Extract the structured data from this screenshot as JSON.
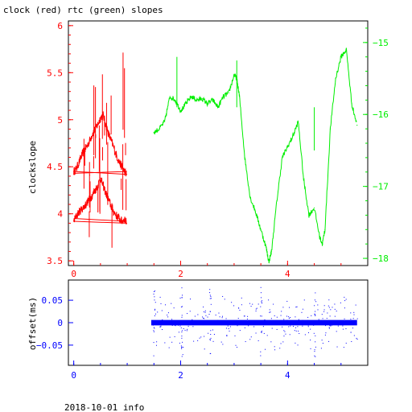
{
  "title": "clock (red) rtc (green) slopes",
  "footer": "2018-10-01 info",
  "colors": {
    "clock": "#ff0000",
    "rtc": "#00ee00",
    "offset": "#0000ff",
    "axis": "#000000"
  },
  "chart_data": [
    {
      "type": "line",
      "title": "clock (red) rtc (green) slopes",
      "ylabel": "clockslope",
      "xlim": [
        -0.1,
        5.5
      ],
      "ylim": [
        3.45,
        6.05
      ],
      "y2lim": [
        -18.1,
        -14.7
      ],
      "xticks": [
        0,
        2,
        4
      ],
      "yticks": [
        3.5,
        4,
        4.5,
        5,
        5.5,
        6
      ],
      "y2ticks": [
        -18,
        -17,
        -16,
        -15
      ],
      "xtick_labels": [
        "0",
        "2",
        "4"
      ],
      "ytick_labels": [
        "3.5",
        "4",
        "4.5",
        "5",
        "5.5",
        "6"
      ],
      "y2tick_labels": [
        "−18",
        "−17",
        "−16",
        "−15"
      ],
      "series": [
        {
          "axis": "left",
          "x": [
            0.0,
            0.05,
            0.1,
            0.15,
            0.2,
            0.25,
            0.3,
            0.35,
            0.4,
            0.45,
            0.5,
            0.55,
            0.6,
            0.65,
            0.7,
            0.75,
            0.8,
            0.85,
            0.9,
            0.95,
            0.99
          ],
          "y": [
            4.45,
            4.48,
            4.55,
            4.62,
            4.68,
            4.72,
            4.78,
            4.85,
            4.9,
            4.95,
            5.02,
            5.05,
            4.95,
            4.85,
            4.78,
            4.7,
            4.62,
            4.55,
            4.5,
            4.45,
            4.42
          ]
        },
        {
          "axis": "left",
          "x": [
            0.0,
            0.05,
            0.1,
            0.15,
            0.2,
            0.25,
            0.3,
            0.35,
            0.4,
            0.45,
            0.5,
            0.55,
            0.6,
            0.65,
            0.7,
            0.75,
            0.8,
            0.85,
            0.9,
            0.95,
            0.99
          ],
          "y": [
            3.92,
            3.98,
            4.02,
            4.05,
            4.08,
            4.12,
            4.16,
            4.2,
            4.25,
            4.3,
            4.38,
            4.3,
            4.22,
            4.15,
            4.08,
            4.02,
            3.98,
            3.95,
            3.92,
            3.95,
            3.9
          ]
        },
        {
          "axis": "right",
          "x": [
            1.5,
            1.6,
            1.7,
            1.8,
            1.9,
            2.0,
            2.1,
            2.2,
            2.3,
            2.4,
            2.5,
            2.6,
            2.7,
            2.8,
            2.9,
            3.0,
            3.05,
            3.1,
            3.2,
            3.3,
            3.4,
            3.5,
            3.6,
            3.65,
            3.7,
            3.8,
            3.9,
            4.0,
            4.1,
            4.2,
            4.3,
            4.4,
            4.5,
            4.6,
            4.65,
            4.7,
            4.8,
            4.9,
            5.0,
            5.1,
            5.2,
            5.3
          ],
          "y": [
            -16.25,
            -16.2,
            -16.1,
            -15.75,
            -15.8,
            -15.95,
            -15.85,
            -15.75,
            -15.8,
            -15.78,
            -15.85,
            -15.8,
            -15.9,
            -15.75,
            -15.7,
            -15.45,
            -15.5,
            -15.75,
            -16.6,
            -17.15,
            -17.35,
            -17.6,
            -17.85,
            -18.05,
            -17.9,
            -17.2,
            -16.6,
            -16.45,
            -16.3,
            -16.1,
            -16.9,
            -17.4,
            -17.3,
            -17.7,
            -17.8,
            -17.6,
            -16.2,
            -15.5,
            -15.2,
            -15.1,
            -15.85,
            -16.15
          ]
        }
      ]
    },
    {
      "type": "scatter",
      "ylabel": "offset(ms)",
      "xlim": [
        -0.1,
        5.5
      ],
      "ylim": [
        -0.095,
        0.095
      ],
      "xticks": [
        0,
        2,
        4
      ],
      "yticks": [
        -0.05,
        0,
        0.05
      ],
      "xtick_labels": [
        "0",
        "2",
        "4"
      ],
      "ytick_labels": [
        "−0.05",
        "0",
        "0.05"
      ],
      "series": [
        {
          "x_range": [
            1.45,
            5.3
          ],
          "y_center": 0.0,
          "y_spread": 0.012
        }
      ]
    }
  ]
}
